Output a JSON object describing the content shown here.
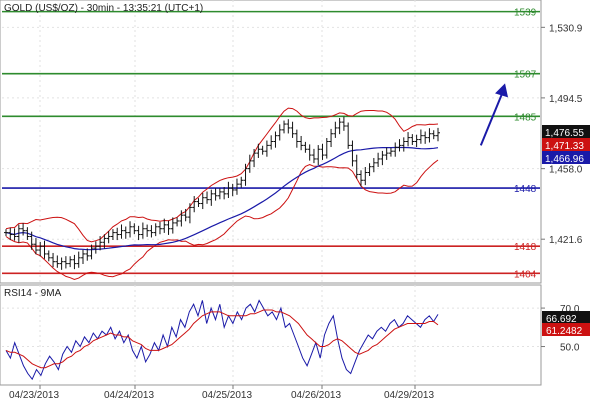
{
  "chart_data": [
    {
      "type": "candlestick",
      "title": "GOLD (US$/OZ) - 30min - 13:35:21 (UTC+1)",
      "x_tick_labels": [
        "04/23/2013",
        "04/24/2013",
        "04/25/2013",
        "04/26/2013",
        "04/29/2013"
      ],
      "y_tick_labels": [
        "1,530.9",
        "1,494.5",
        "1,458.0",
        "1,421.6"
      ],
      "ylim": [
        1399,
        1545
      ],
      "grid": true,
      "levels": [
        {
          "value": 1539,
          "label": "1539",
          "color": "#2e8b2e"
        },
        {
          "value": 1507,
          "label": "1507",
          "color": "#2e8b2e"
        },
        {
          "value": 1485,
          "label": "1485",
          "color": "#2e8b2e"
        },
        {
          "value": 1448,
          "label": "1448",
          "color": "#1a1aa8"
        },
        {
          "value": 1418,
          "label": "1418",
          "color": "#cc2222"
        },
        {
          "value": 1404,
          "label": "1404",
          "color": "#cc2222"
        }
      ],
      "price_badges": [
        {
          "label": "1,476.55",
          "value": 1476.55,
          "bg": "#111111",
          "fg": "#ffffff"
        },
        {
          "label": "1,471.33",
          "value": 1471.33,
          "bg": "#cc1111",
          "fg": "#ffffff"
        },
        {
          "label": "1,466.96",
          "value": 1466.96,
          "bg": "#1a1aa8",
          "fg": "#ffffff"
        }
      ],
      "forecast_arrow": {
        "from": [
          0.89,
          1470
        ],
        "to": [
          0.935,
          1502
        ]
      },
      "price_series": {
        "close": [
          1425,
          1424,
          1423,
          1427,
          1426,
          1423,
          1419,
          1416,
          1418,
          1414,
          1412,
          1410,
          1409,
          1410,
          1409,
          1411,
          1409,
          1412,
          1414,
          1413,
          1417,
          1418,
          1420,
          1422,
          1423,
          1425,
          1424,
          1426,
          1425,
          1428,
          1426,
          1424,
          1427,
          1426,
          1425,
          1428,
          1427,
          1429,
          1427,
          1430,
          1431,
          1434,
          1433,
          1438,
          1441,
          1440,
          1443,
          1442,
          1445,
          1444,
          1446,
          1445,
          1448,
          1447,
          1450,
          1452,
          1458,
          1462,
          1466,
          1468,
          1467,
          1470,
          1472,
          1475,
          1478,
          1481,
          1479,
          1476,
          1472,
          1470,
          1468,
          1465,
          1463,
          1468,
          1465,
          1472,
          1476,
          1479,
          1482,
          1480,
          1470,
          1462,
          1455,
          1452,
          1456,
          1459,
          1461,
          1463,
          1465,
          1466,
          1467,
          1469,
          1470,
          1472,
          1474,
          1472,
          1473,
          1475,
          1474,
          1476,
          1475,
          1476.5
        ]
      },
      "indicators": [
        "Bollinger Bands (upper, lower)",
        "Moving average (blue)"
      ]
    },
    {
      "type": "line",
      "title": "RSI14 - 9MA",
      "y_tick_labels": [
        "70.0",
        "50.0"
      ],
      "ylim": [
        30,
        82
      ],
      "series": [
        {
          "name": "RSI14",
          "color": "#1a1aa8",
          "values": [
            48,
            44,
            52,
            46,
            40,
            36,
            33,
            38,
            35,
            41,
            45,
            42,
            38,
            46,
            50,
            47,
            53,
            50,
            55,
            52,
            57,
            54,
            58,
            56,
            60,
            54,
            58,
            52,
            56,
            48,
            44,
            50,
            42,
            46,
            52,
            48,
            56,
            50,
            60,
            55,
            64,
            60,
            68,
            72,
            66,
            74,
            62,
            70,
            64,
            72,
            60,
            66,
            62,
            68,
            64,
            70,
            72,
            68,
            74,
            70,
            66,
            68,
            64,
            70,
            60,
            62,
            56,
            50,
            44,
            40,
            46,
            52,
            44,
            56,
            62,
            66,
            54,
            44,
            38,
            36,
            42,
            48,
            52,
            56,
            54,
            58,
            60,
            58,
            62,
            64,
            60,
            62,
            66,
            64,
            62,
            60,
            64,
            66,
            63,
            66.692
          ]
        },
        {
          "name": "9MA",
          "color": "#cc1111",
          "values": [
            48,
            47,
            47,
            46,
            45,
            43,
            41,
            40,
            39,
            39,
            40,
            41,
            41,
            42,
            44,
            45,
            47,
            48,
            50,
            51,
            53,
            54,
            55,
            56,
            57,
            56,
            56,
            55,
            55,
            53,
            52,
            51,
            49,
            48,
            48,
            48,
            49,
            50,
            51,
            53,
            55,
            57,
            59,
            62,
            64,
            66,
            67,
            68,
            68,
            68,
            67,
            66,
            66,
            66,
            66,
            66,
            67,
            67,
            68,
            69,
            69,
            69,
            68,
            68,
            67,
            66,
            64,
            62,
            59,
            56,
            54,
            52,
            50,
            50,
            51,
            53,
            54,
            53,
            51,
            49,
            47,
            46,
            47,
            48,
            50,
            51,
            53,
            55,
            57,
            59,
            60,
            61,
            62,
            62,
            62,
            62,
            62,
            63,
            63,
            61.2482
          ]
        }
      ],
      "value_badges": [
        {
          "label": "66.692",
          "value": 66.692,
          "bg": "#111111",
          "fg": "#ffffff"
        },
        {
          "label": "61.2482",
          "value": 61.2482,
          "bg": "#cc1111",
          "fg": "#ffffff"
        }
      ]
    }
  ]
}
